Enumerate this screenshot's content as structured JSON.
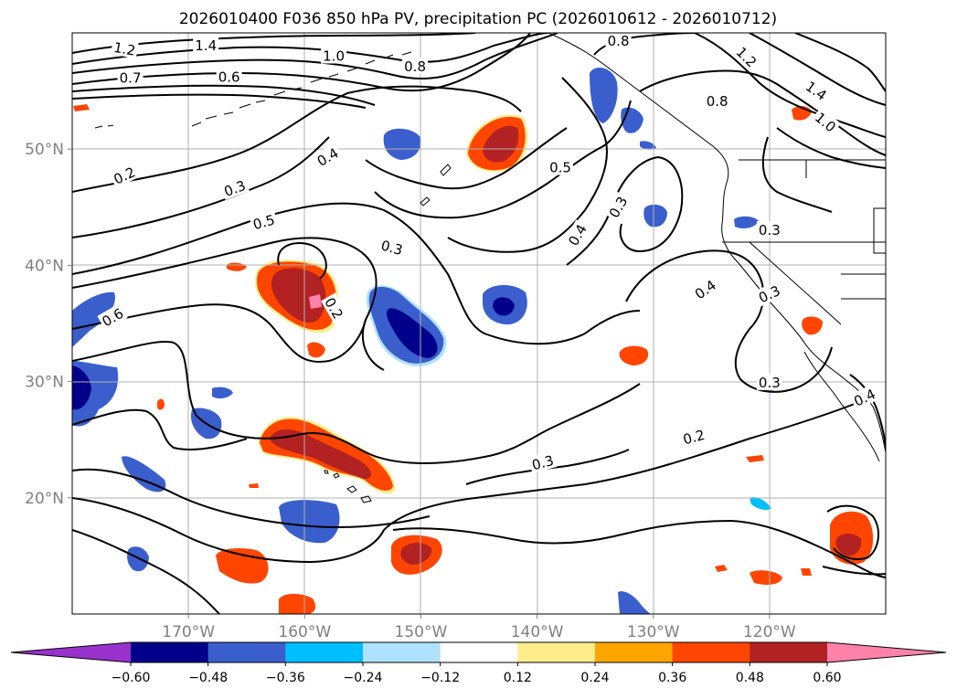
{
  "chart_data": {
    "type": "contour-map",
    "title": "2026010400 F036 850 hPa PV, precipitation PC (2026010612 - 2026010712)",
    "lon_range": [
      -180,
      -110
    ],
    "lat_range": [
      10,
      60
    ],
    "x_ticks": [
      {
        "value": -170,
        "label": "170°W"
      },
      {
        "value": -160,
        "label": "160°W"
      },
      {
        "value": -150,
        "label": "150°W"
      },
      {
        "value": -140,
        "label": "140°W"
      },
      {
        "value": -130,
        "label": "130°W"
      },
      {
        "value": -120,
        "label": "120°W"
      }
    ],
    "y_ticks": [
      {
        "value": 20,
        "label": "20°N"
      },
      {
        "value": 30,
        "label": "30°N"
      },
      {
        "value": 40,
        "label": "40°N"
      },
      {
        "value": 50,
        "label": "50°N"
      }
    ],
    "colorbar": {
      "levels": [
        -0.6,
        -0.48,
        -0.36,
        -0.24,
        -0.12,
        0.12,
        0.24,
        0.36,
        0.48,
        0.6
      ],
      "labels": [
        "−0.60",
        "−0.48",
        "−0.36",
        "−0.24",
        "−0.12",
        "0.12",
        "0.24",
        "0.36",
        "0.48",
        "0.60"
      ],
      "colors": [
        "#9932cc",
        "#00008b",
        "#3a5fcd",
        "#00bfff",
        "#b0e2ff",
        "#ffffff",
        "#ffec8b",
        "#ffa500",
        "#ff4500",
        "#b22222",
        "#ff82ab"
      ]
    },
    "contour_labels": [
      {
        "text": "1.2",
        "lon": -175.5,
        "lat": 58.6,
        "rot": 10
      },
      {
        "text": "1.4",
        "lon": -168.5,
        "lat": 58.9,
        "rot": 0
      },
      {
        "text": "1.0",
        "lon": -157.5,
        "lat": 58.0,
        "rot": 0
      },
      {
        "text": "0.7",
        "lon": -175.0,
        "lat": 56.1,
        "rot": 0
      },
      {
        "text": "0.6",
        "lon": -166.5,
        "lat": 56.2,
        "rot": 0
      },
      {
        "text": "0.8",
        "lon": -150.5,
        "lat": 57.1,
        "rot": 0
      },
      {
        "text": "0.8",
        "lon": -133.0,
        "lat": 59.3,
        "rot": 0
      },
      {
        "text": "0.8",
        "lon": -124.5,
        "lat": 54.1,
        "rot": 0
      },
      {
        "text": "1.2",
        "lon": -122.0,
        "lat": 57.9,
        "rot": 45
      },
      {
        "text": "1.4",
        "lon": -116.0,
        "lat": 55.0,
        "rot": 35
      },
      {
        "text": "1.0",
        "lon": -115.2,
        "lat": 52.3,
        "rot": 40
      },
      {
        "text": "0.4",
        "lon": -158.0,
        "lat": 49.3,
        "rot": -30
      },
      {
        "text": "0.2",
        "lon": -175.5,
        "lat": 47.7,
        "rot": -25
      },
      {
        "text": "0.3",
        "lon": -166.0,
        "lat": 46.6,
        "rot": -20
      },
      {
        "text": "0.5",
        "lon": -163.5,
        "lat": 43.7,
        "rot": -15
      },
      {
        "text": "0.5",
        "lon": -138.0,
        "lat": 48.4,
        "rot": 0
      },
      {
        "text": "0.3",
        "lon": -152.5,
        "lat": 41.5,
        "rot": 15
      },
      {
        "text": "0.3",
        "lon": -133.0,
        "lat": 45.0,
        "rot": -60
      },
      {
        "text": "0.4",
        "lon": -136.5,
        "lat": 42.6,
        "rot": -60
      },
      {
        "text": "0.3",
        "lon": -120.0,
        "lat": 43.0,
        "rot": 0
      },
      {
        "text": "0.4",
        "lon": -125.5,
        "lat": 37.9,
        "rot": -35
      },
      {
        "text": "0.3",
        "lon": -120.0,
        "lat": 37.5,
        "rot": -25
      },
      {
        "text": "0.2",
        "lon": -157.5,
        "lat": 36.3,
        "rot": 60
      },
      {
        "text": "0.6",
        "lon": -176.5,
        "lat": 35.5,
        "rot": -30
      },
      {
        "text": "0.3",
        "lon": -120.0,
        "lat": 29.9,
        "rot": 0
      },
      {
        "text": "0.4",
        "lon": -111.8,
        "lat": 28.6,
        "rot": -25
      },
      {
        "text": "0.2",
        "lon": -126.5,
        "lat": 25.2,
        "rot": -15
      },
      {
        "text": "0.3",
        "lon": -139.5,
        "lat": 23.0,
        "rot": -15
      }
    ]
  }
}
